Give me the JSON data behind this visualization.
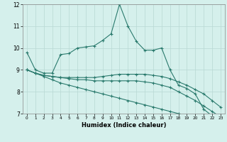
{
  "xlabel": "Humidex (Indice chaleur)",
  "x_values": [
    0,
    1,
    2,
    3,
    4,
    5,
    6,
    7,
    8,
    9,
    10,
    11,
    12,
    13,
    14,
    15,
    16,
    17,
    18,
    19,
    20,
    21,
    22,
    23
  ],
  "line1_y": [
    9.8,
    9.0,
    8.85,
    8.85,
    9.7,
    9.75,
    10.0,
    10.05,
    10.1,
    10.35,
    10.65,
    12.0,
    11.0,
    10.3,
    9.9,
    9.9,
    10.0,
    9.0,
    8.3,
    8.15,
    7.9,
    7.2,
    6.9,
    6.8
  ],
  "line2_y": [
    9.0,
    8.85,
    8.75,
    8.7,
    8.65,
    8.65,
    8.65,
    8.65,
    8.65,
    8.7,
    8.75,
    8.8,
    8.8,
    8.8,
    8.8,
    8.75,
    8.7,
    8.6,
    8.45,
    8.3,
    8.1,
    7.9,
    7.6,
    7.3
  ],
  "line3_y": [
    9.0,
    8.85,
    8.75,
    8.7,
    8.65,
    8.6,
    8.55,
    8.55,
    8.5,
    8.5,
    8.5,
    8.5,
    8.5,
    8.5,
    8.45,
    8.4,
    8.3,
    8.2,
    8.0,
    7.8,
    7.6,
    7.35,
    7.1,
    6.85
  ],
  "line4_y": [
    9.0,
    8.85,
    8.7,
    8.55,
    8.4,
    8.3,
    8.2,
    8.1,
    8.0,
    7.9,
    7.8,
    7.7,
    7.6,
    7.5,
    7.4,
    7.3,
    7.2,
    7.1,
    7.0,
    6.9,
    6.85,
    6.8,
    6.75,
    6.65
  ],
  "line_color": "#2a7a6d",
  "bg_color": "#d5f0ec",
  "grid_color": "#b8d8d3",
  "ylim": [
    7,
    12
  ],
  "xlim": [
    -0.5,
    23.5
  ],
  "yticks": [
    7,
    8,
    9,
    10,
    11,
    12
  ],
  "xticks": [
    0,
    1,
    2,
    3,
    4,
    5,
    6,
    7,
    8,
    9,
    10,
    11,
    12,
    13,
    14,
    15,
    16,
    17,
    18,
    19,
    20,
    21,
    22,
    23
  ]
}
